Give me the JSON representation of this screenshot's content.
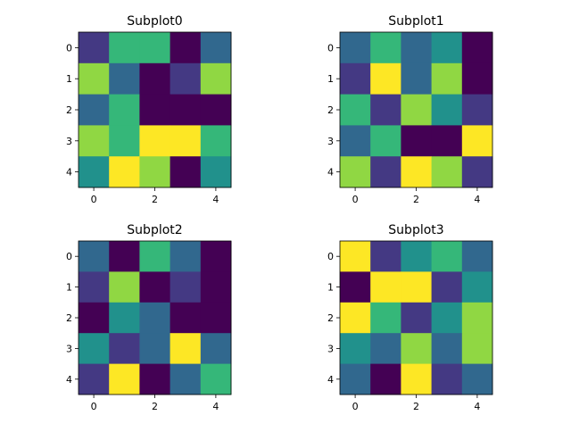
{
  "chart_data": [
    {
      "type": "heatmap",
      "title": "Subplot0",
      "x_ticks": [
        "0",
        "2",
        "4"
      ],
      "y_ticks": [
        "0",
        "1",
        "2",
        "3",
        "4"
      ],
      "colormap": "viridis",
      "palette": [
        "#440154",
        "#443983",
        "#31688e",
        "#21918c",
        "#35b779",
        "#90d743",
        "#fde725"
      ],
      "levels": [
        [
          1,
          4,
          4,
          0,
          2
        ],
        [
          5,
          2,
          0,
          1,
          5
        ],
        [
          2,
          4,
          0,
          0,
          0
        ],
        [
          5,
          4,
          6,
          6,
          4
        ],
        [
          3,
          6,
          5,
          0,
          3
        ]
      ]
    },
    {
      "type": "heatmap",
      "title": "Subplot1",
      "x_ticks": [
        "0",
        "2",
        "4"
      ],
      "y_ticks": [
        "0",
        "1",
        "2",
        "3",
        "4"
      ],
      "colormap": "viridis",
      "palette": [
        "#440154",
        "#443983",
        "#31688e",
        "#21918c",
        "#35b779",
        "#90d743",
        "#fde725"
      ],
      "levels": [
        [
          2,
          4,
          2,
          3,
          0
        ],
        [
          1,
          6,
          2,
          5,
          0
        ],
        [
          4,
          1,
          5,
          3,
          1
        ],
        [
          2,
          4,
          0,
          0,
          6
        ],
        [
          5,
          1,
          6,
          5,
          1
        ]
      ]
    },
    {
      "type": "heatmap",
      "title": "Subplot2",
      "x_ticks": [
        "0",
        "2",
        "4"
      ],
      "y_ticks": [
        "0",
        "1",
        "2",
        "3",
        "4"
      ],
      "colormap": "viridis",
      "palette": [
        "#440154",
        "#443983",
        "#31688e",
        "#21918c",
        "#35b779",
        "#90d743",
        "#fde725"
      ],
      "levels": [
        [
          2,
          0,
          4,
          2,
          0
        ],
        [
          1,
          5,
          0,
          1,
          0
        ],
        [
          0,
          3,
          2,
          0,
          0
        ],
        [
          3,
          1,
          2,
          6,
          2
        ],
        [
          1,
          6,
          0,
          2,
          4
        ]
      ]
    },
    {
      "type": "heatmap",
      "title": "Subplot3",
      "x_ticks": [
        "0",
        "2",
        "4"
      ],
      "y_ticks": [
        "0",
        "1",
        "2",
        "3",
        "4"
      ],
      "colormap": "viridis",
      "palette": [
        "#440154",
        "#443983",
        "#31688e",
        "#21918c",
        "#35b779",
        "#90d743",
        "#fde725"
      ],
      "levels": [
        [
          6,
          1,
          3,
          4,
          2
        ],
        [
          0,
          6,
          6,
          1,
          3
        ],
        [
          6,
          4,
          1,
          3,
          5
        ],
        [
          3,
          2,
          5,
          2,
          5
        ],
        [
          2,
          0,
          6,
          1,
          2
        ]
      ]
    }
  ]
}
